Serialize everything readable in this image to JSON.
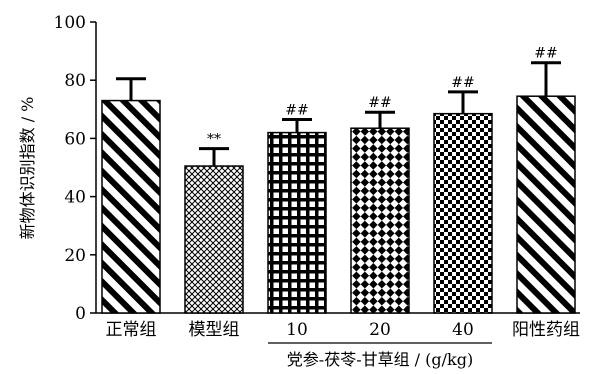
{
  "chart_data": {
    "type": "bar",
    "ylabel": "新物体识别指数 / %",
    "ylim": [
      0,
      100
    ],
    "yticks": [
      0,
      20,
      40,
      60,
      80,
      100
    ],
    "categories": [
      "正常组",
      "模型组",
      "10",
      "20",
      "40",
      "阳性药组"
    ],
    "values": [
      73,
      50.5,
      62,
      63.5,
      68.5,
      74.5
    ],
    "errors": [
      7.5,
      6,
      4.5,
      5.5,
      7.5,
      11.5
    ],
    "annotations": [
      "",
      "**",
      "##",
      "##",
      "##",
      "##"
    ],
    "patterns": [
      "diag-wide",
      "fine-crosshatch",
      "grid",
      "diamond-check",
      "checker",
      "diag-wide"
    ],
    "group_label": "党参-茯苓-甘草组 / (g/kg)",
    "group_range": [
      2,
      4
    ],
    "grid": false,
    "legend": "none"
  }
}
